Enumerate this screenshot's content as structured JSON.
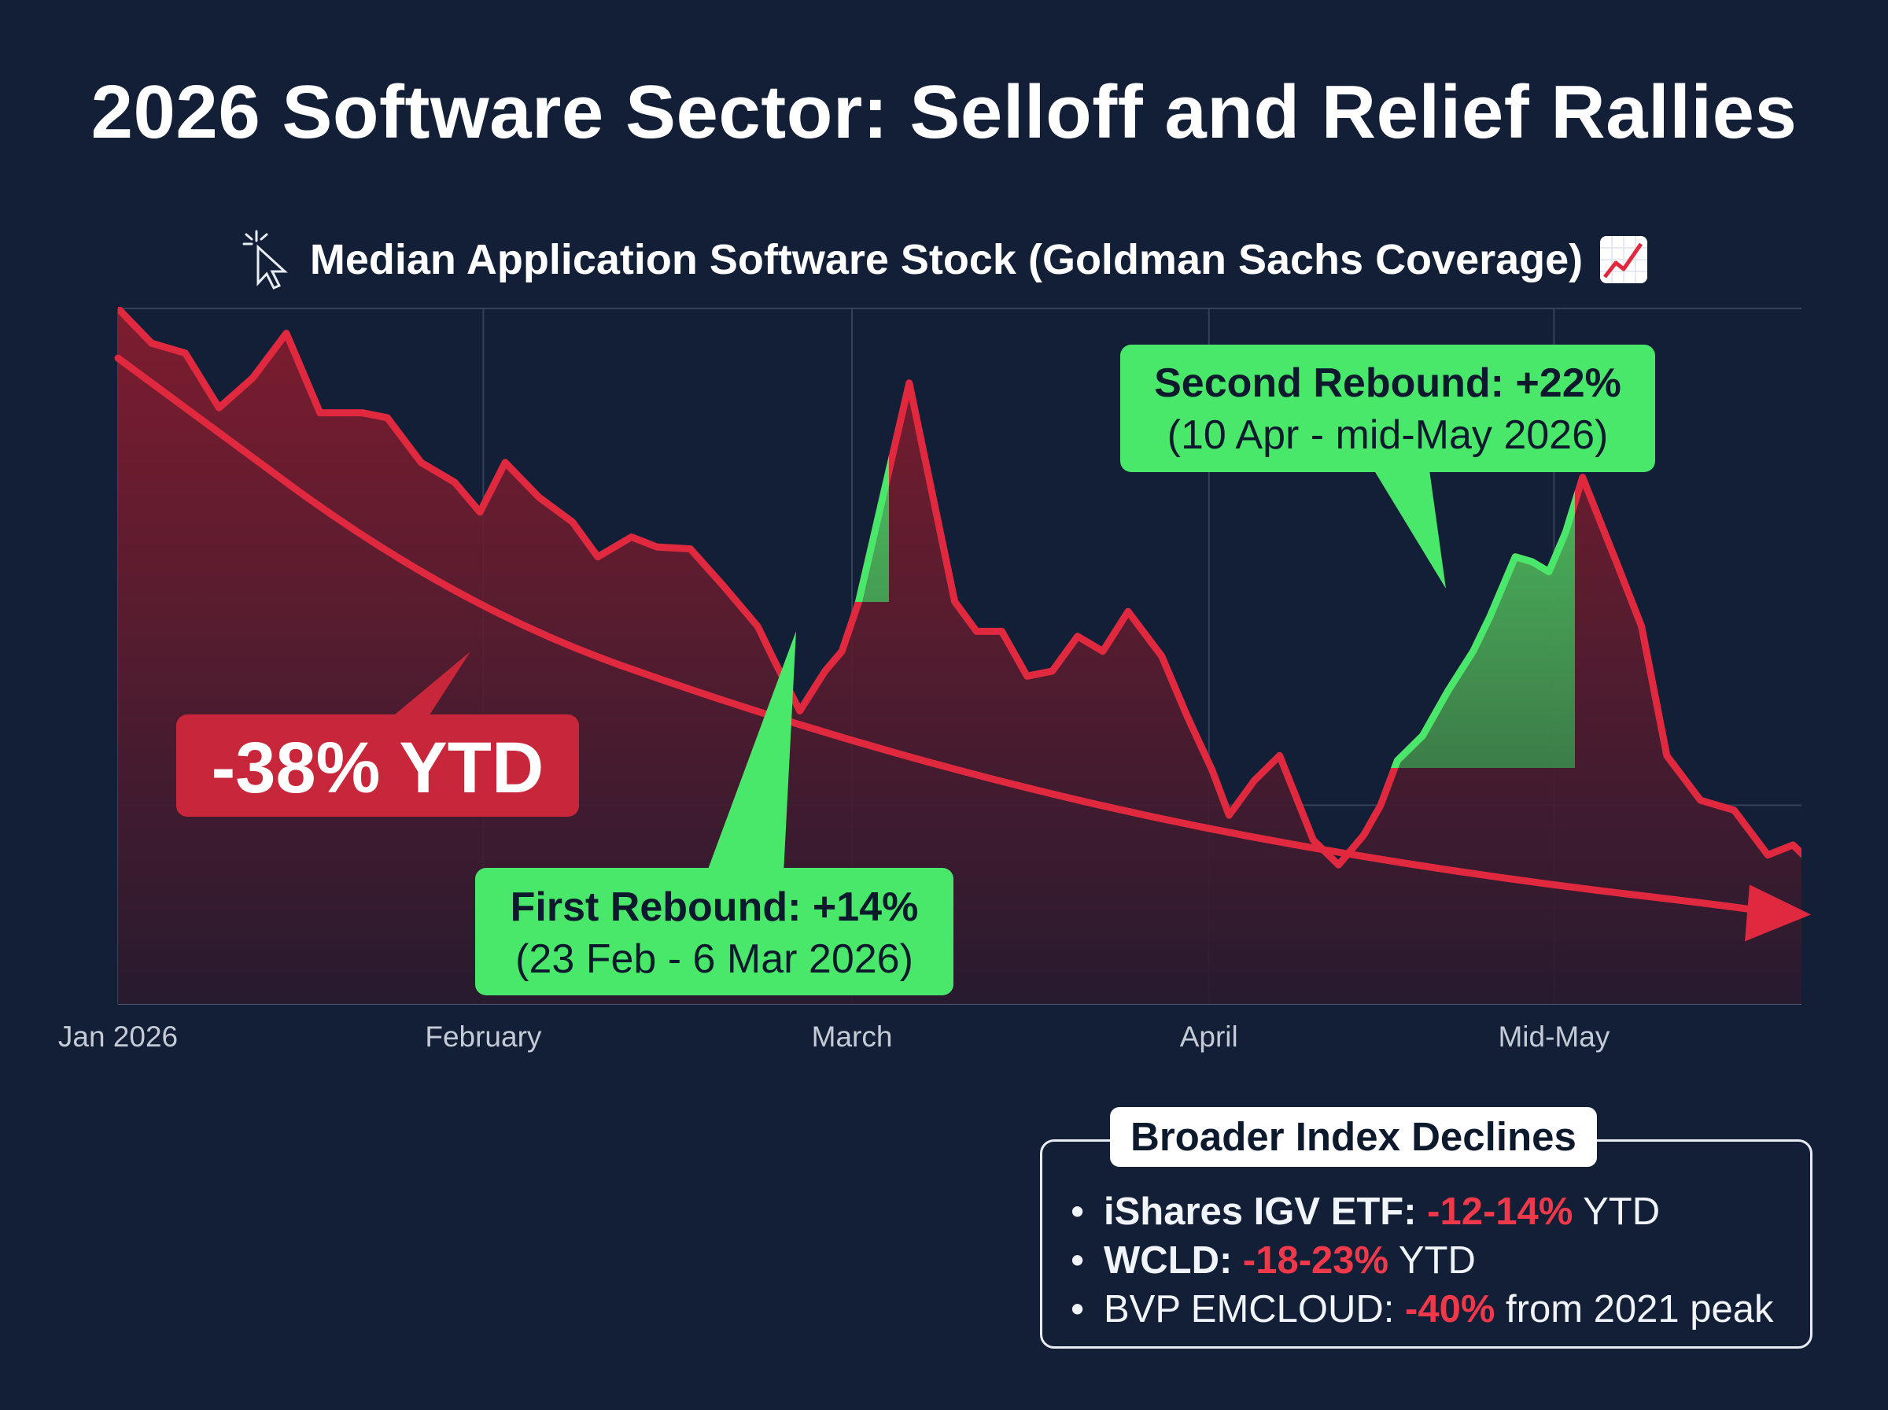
{
  "title": "2026 Software Sector: Selloff and Relief Rallies",
  "subtitle": "Median Application Software Stock (Goldman Sachs Coverage)",
  "colors": {
    "background": "#121f36",
    "decline": "#e0293f",
    "rebound": "#4ae86a",
    "label_box": "#c8263a"
  },
  "icons": [
    "cursor-click-icon",
    "chart-increasing-icon"
  ],
  "chart_data": {
    "type": "area",
    "x_ticks": [
      "Jan 2026",
      "February",
      "March",
      "April",
      "Mid-May"
    ],
    "annotations": {
      "ytd": "-38% YTD",
      "first_rebound": {
        "title": "First Rebound: +14%",
        "dates": "(23 Feb - 6 Mar 2026)"
      },
      "second_rebound": {
        "title": "Second Rebound: +22%",
        "dates": "(10 Apr - mid-May 2026)"
      }
    },
    "series": [
      {
        "values": [
          [
            0.0,
            0.0
          ],
          [
            0.02,
            -3.5
          ],
          [
            0.04,
            -4.5
          ],
          [
            0.06,
            -10
          ],
          [
            0.08,
            -7
          ],
          [
            0.1,
            -2.5
          ],
          [
            0.12,
            -10.5
          ],
          [
            0.145,
            -10.5
          ],
          [
            0.16,
            -11
          ],
          [
            0.18,
            -15.5
          ],
          [
            0.2,
            -17.5
          ],
          [
            0.215,
            -20.5
          ],
          [
            0.23,
            -15.5
          ],
          [
            0.25,
            -19
          ],
          [
            0.27,
            -21.5
          ],
          [
            0.285,
            -25
          ],
          [
            0.305,
            -23
          ],
          [
            0.32,
            -24
          ],
          [
            0.34,
            -24.2
          ],
          [
            0.36,
            -28
          ],
          [
            0.38,
            -32
          ],
          [
            0.39,
            -35.5
          ],
          [
            0.405,
            -40.5
          ],
          [
            0.42,
            -36.5
          ],
          [
            0.43,
            -34.5
          ],
          [
            0.44,
            -29.5
          ],
          [
            0.47,
            -7.5
          ],
          [
            0.497,
            -29.5
          ],
          [
            0.51,
            -32.5
          ],
          [
            0.525,
            -32.5
          ],
          [
            0.54,
            -37
          ],
          [
            0.555,
            -36.5
          ],
          [
            0.57,
            -33
          ],
          [
            0.585,
            -34.5
          ],
          [
            0.6,
            -30.5
          ],
          [
            0.62,
            -35
          ],
          [
            0.635,
            -41
          ],
          [
            0.65,
            -46.5
          ],
          [
            0.66,
            -51
          ],
          [
            0.675,
            -47.5
          ],
          [
            0.69,
            -45
          ],
          [
            0.71,
            -53.5
          ],
          [
            0.725,
            -56
          ],
          [
            0.74,
            -53
          ],
          [
            0.75,
            -50
          ],
          [
            0.76,
            -45.5
          ],
          [
            0.775,
            -43
          ],
          [
            0.79,
            -38.5
          ],
          [
            0.805,
            -34.5
          ],
          [
            0.815,
            -31
          ],
          [
            0.83,
            -25
          ],
          [
            0.84,
            -25.5
          ],
          [
            0.85,
            -26.5
          ],
          [
            0.86,
            -22.5
          ],
          [
            0.87,
            -17
          ],
          [
            0.89,
            -25.5
          ],
          [
            0.905,
            -32
          ],
          [
            0.92,
            -45
          ],
          [
            0.94,
            -49.5
          ],
          [
            0.96,
            -50.5
          ],
          [
            0.98,
            -55
          ],
          [
            0.995,
            -54
          ],
          [
            1.01,
            -56.5
          ],
          [
            1.025,
            -59.5
          ]
        ]
      },
      {
        "values": [
          [
            0.0,
            -5
          ],
          [
            0.2,
            -30
          ],
          [
            0.4,
            -42
          ],
          [
            0.6,
            -51
          ],
          [
            0.8,
            -57
          ],
          [
            1.0,
            -61
          ]
        ]
      }
    ],
    "grid": true,
    "legend": "none"
  },
  "index_box": {
    "title": "Broader Index Declines",
    "items": [
      {
        "name": "iShares IGV ETF:",
        "value": "-12-14%",
        "suffix": " YTD",
        "strong": true
      },
      {
        "name": "WCLD:",
        "value": "-18-23%",
        "suffix": " YTD",
        "strong": true
      },
      {
        "name": "BVP EMCLOUD:",
        "value": "-40%",
        "suffix": " from 2021 peak",
        "strong": false
      }
    ]
  }
}
